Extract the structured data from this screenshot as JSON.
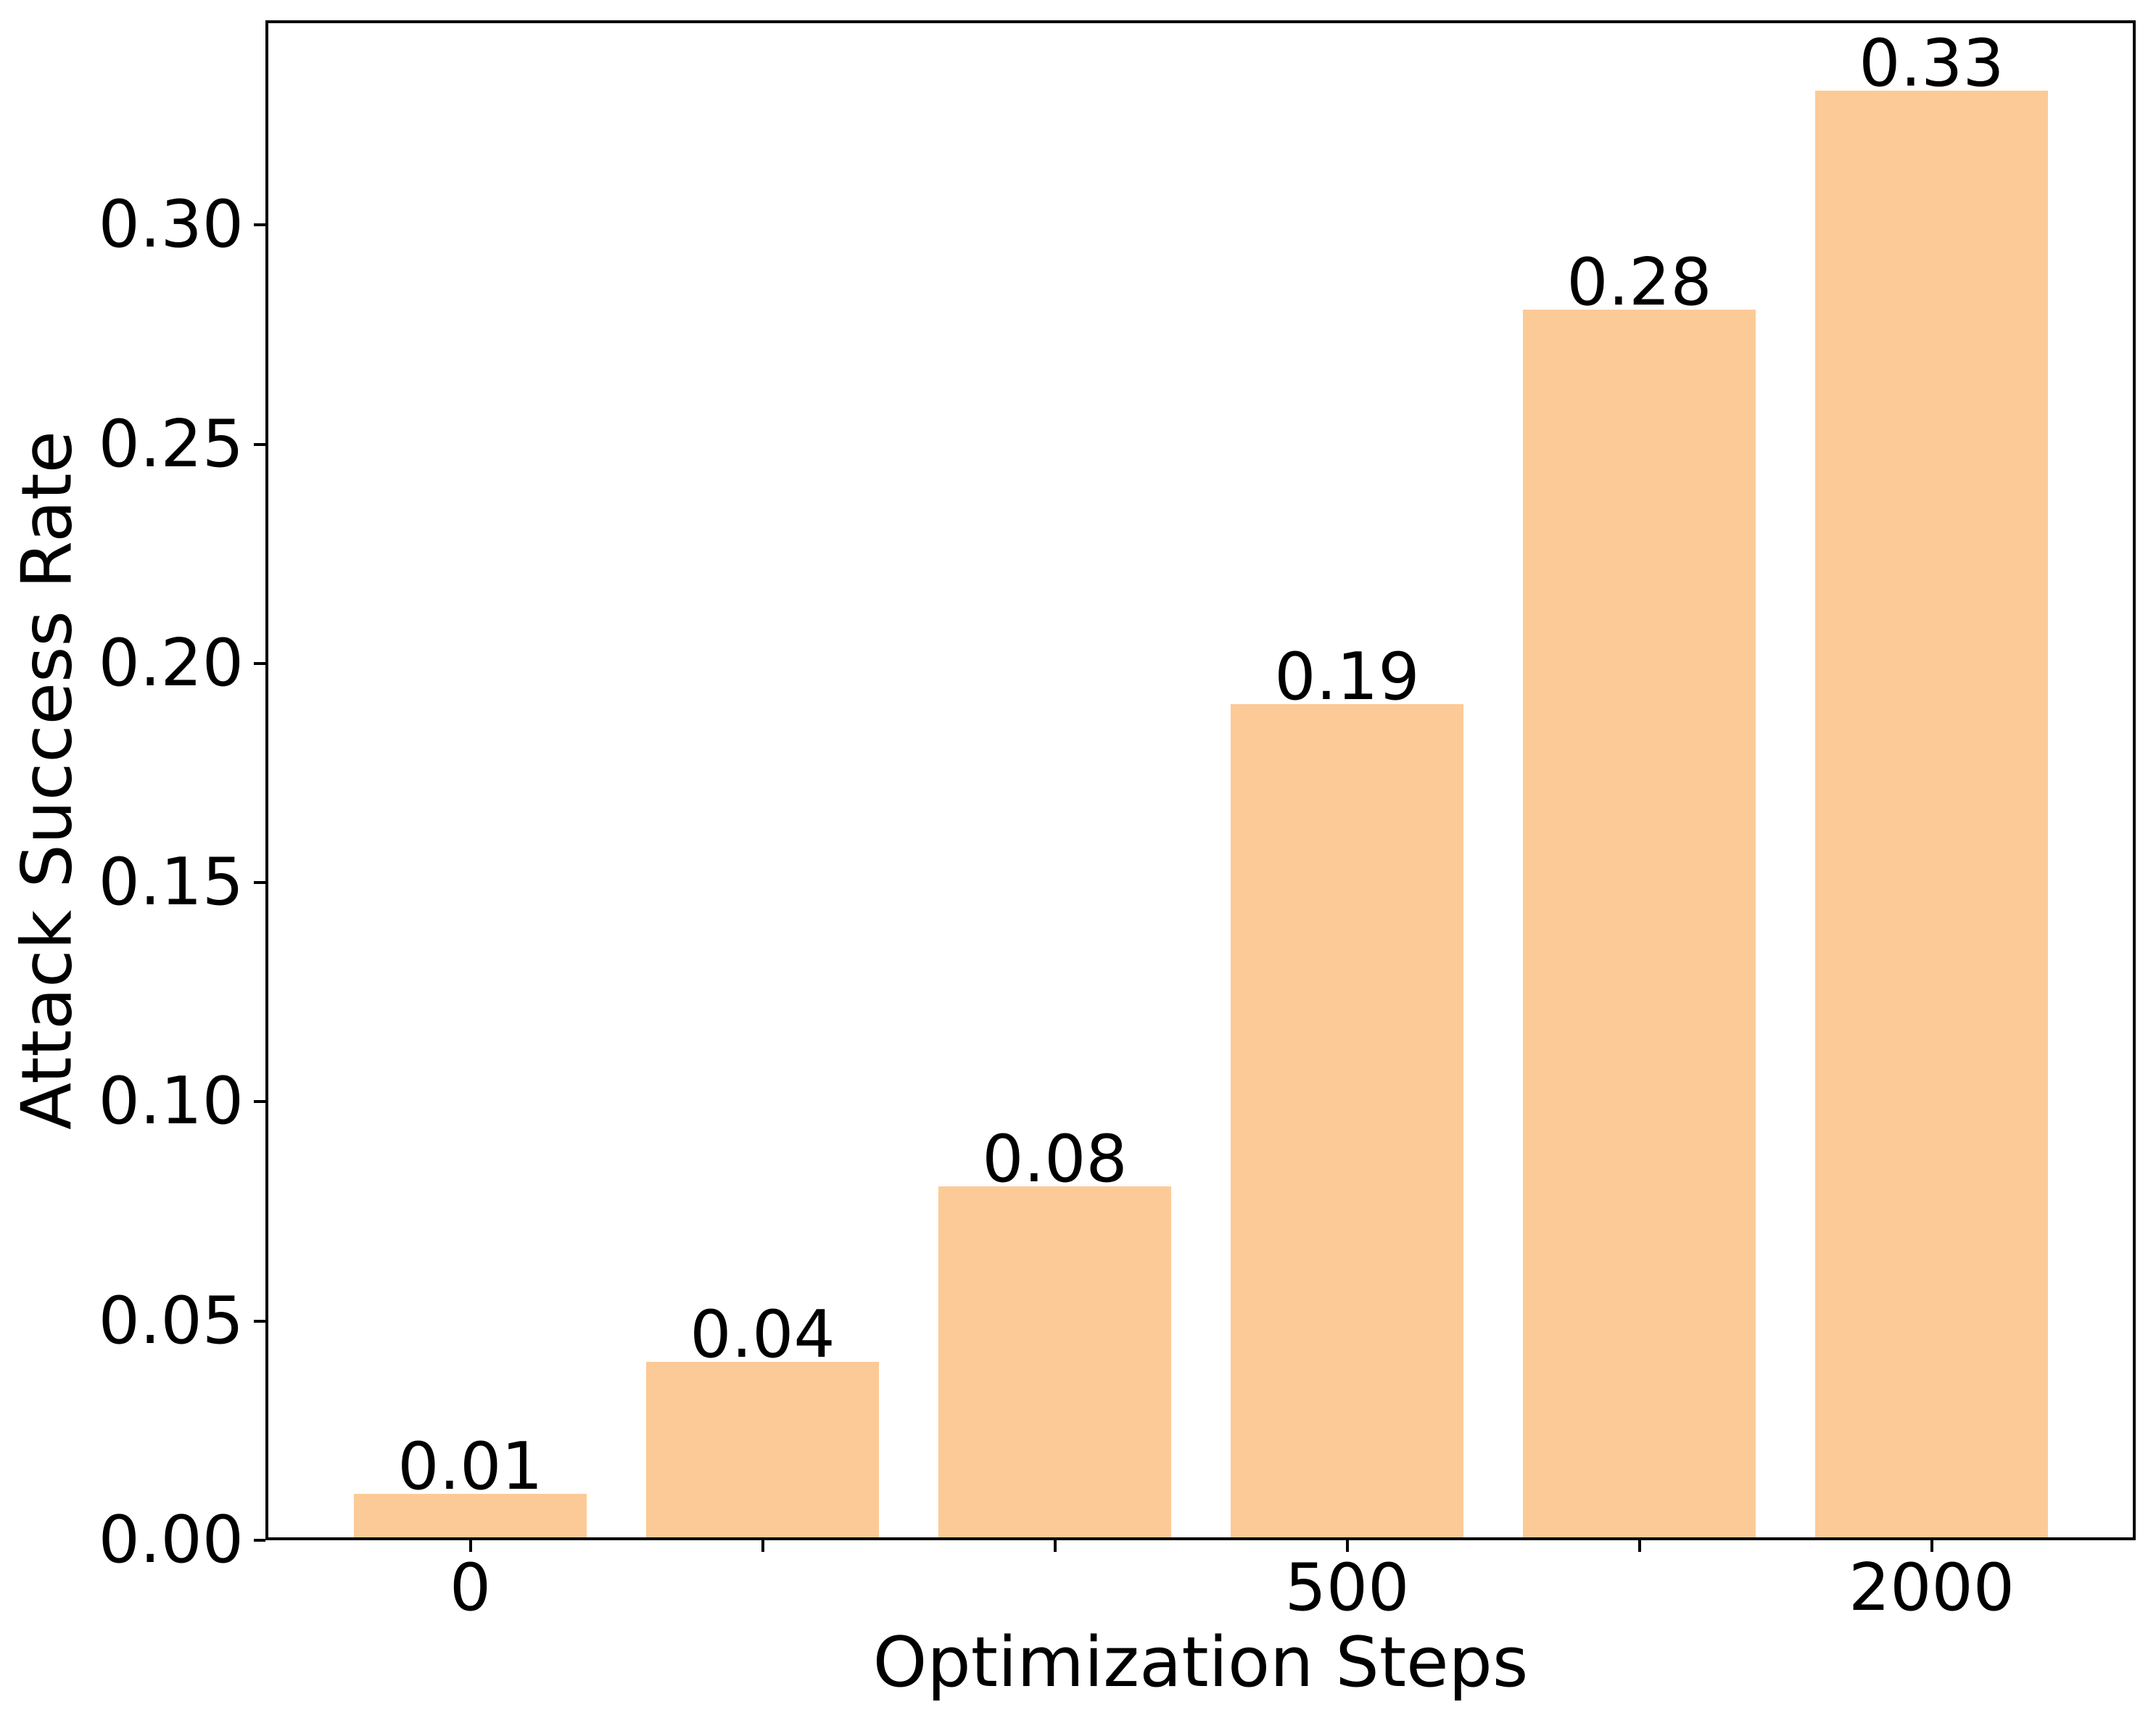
{
  "chart_data": {
    "type": "bar",
    "title": "",
    "xlabel": "Optimization Steps",
    "ylabel": "Attack Success Rate",
    "categories": [
      "0",
      "",
      "",
      "500",
      "",
      "2000"
    ],
    "values": [
      0.01,
      0.04,
      0.08,
      0.19,
      0.28,
      0.33
    ],
    "bar_labels": [
      "0.01",
      "0.04",
      "0.08",
      "0.19",
      "0.28",
      "0.33"
    ],
    "yticks": [
      0.0,
      0.05,
      0.1,
      0.15,
      0.2,
      0.25,
      0.3
    ],
    "ytick_labels": [
      "0.00",
      "0.05",
      "0.10",
      "0.15",
      "0.20",
      "0.25",
      "0.30"
    ],
    "ylim": [
      0,
      0.3454
    ],
    "bar_color": "#FCCA96",
    "spine_color": "#000000",
    "text_color": "#000000",
    "background_color": "#ffffff",
    "grid": false,
    "legend": "none"
  }
}
